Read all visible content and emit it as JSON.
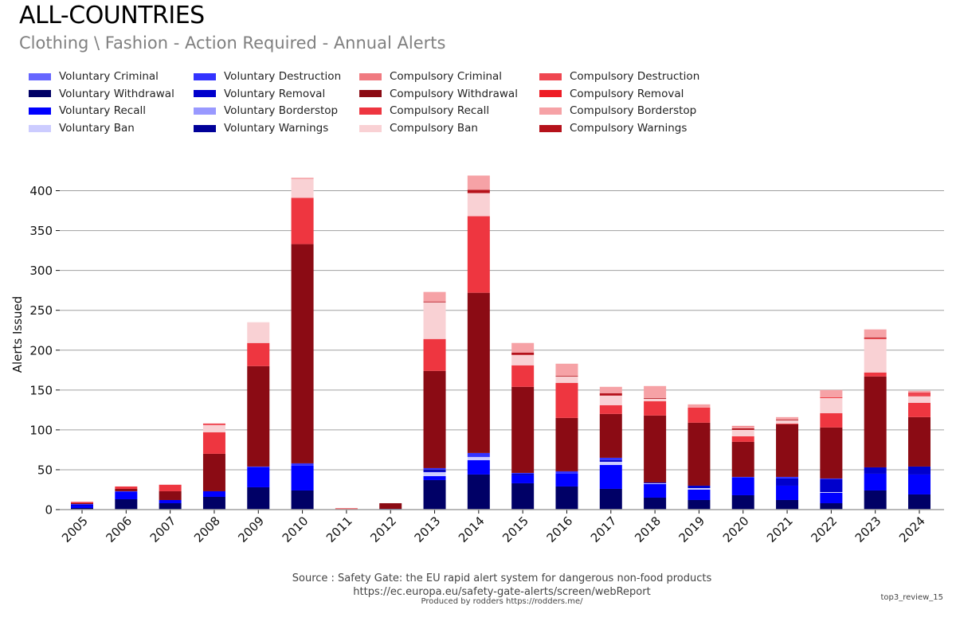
{
  "header": {
    "title": "ALL-COUNTRIES",
    "subtitle": "Clothing \\ Fashion - Action Required - Annual Alerts"
  },
  "footer": {
    "source": "Source : Safety Gate: the EU rapid alert system for dangerous non-food products",
    "url": "https://ec.europa.eu/safety-gate-alerts/screen/webReport",
    "produced_by": "Produced by rodders https://rodders.me/",
    "tag": "top3_review_15"
  },
  "chart_data": {
    "type": "bar",
    "stacked": true,
    "title": "ALL-COUNTRIES",
    "subtitle": "Clothing \\ Fashion - Action Required - Annual Alerts",
    "xlabel": "",
    "ylabel": "Alerts Issued",
    "ylim": [
      0,
      420
    ],
    "yticks": [
      0,
      50,
      100,
      150,
      200,
      250,
      300,
      350,
      400
    ],
    "grid": true,
    "legend_position": "top-left",
    "categories": [
      "2005",
      "2006",
      "2007",
      "2008",
      "2009",
      "2010",
      "2011",
      "2012",
      "2013",
      "2014",
      "2015",
      "2016",
      "2017",
      "2018",
      "2019",
      "2020",
      "2021",
      "2022",
      "2023",
      "2024"
    ],
    "legend_order": [
      "Voluntary Criminal",
      "Voluntary Destruction",
      "Compulsory Criminal",
      "Compulsory Destruction",
      "Voluntary Withdrawal",
      "Voluntary Removal",
      "Compulsory Withdrawal",
      "Compulsory Removal",
      "Voluntary Recall",
      "Voluntary Borderstop",
      "Compulsory Recall",
      "Compulsory Borderstop",
      "Voluntary Ban",
      "Voluntary Warnings",
      "Compulsory Ban",
      "Compulsory Warnings"
    ],
    "series": [
      {
        "name": "Voluntary Withdrawal",
        "color": "#000066",
        "values": [
          2,
          13,
          8,
          16,
          28,
          24,
          0,
          1,
          37,
          44,
          33,
          29,
          26,
          15,
          12,
          18,
          12,
          8,
          24,
          19
        ]
      },
      {
        "name": "Voluntary Recall",
        "color": "#0000ff",
        "values": [
          3,
          9,
          4,
          7,
          25,
          31,
          0,
          0,
          5,
          18,
          10,
          16,
          30,
          17,
          13,
          22,
          18,
          13,
          21,
          25
        ]
      },
      {
        "name": "Voluntary Ban",
        "color": "#ccccff",
        "values": [
          0,
          0,
          0,
          0,
          0,
          0,
          0,
          0,
          5,
          4,
          0,
          0,
          4,
          1,
          2,
          0,
          0,
          1,
          0,
          0
        ]
      },
      {
        "name": "Voluntary Removal",
        "color": "#0000cc",
        "values": [
          1,
          0,
          0,
          0,
          0,
          0,
          0,
          0,
          2,
          0,
          2,
          0,
          2,
          1,
          3,
          0,
          9,
          16,
          8,
          10
        ]
      },
      {
        "name": "Voluntary Warnings",
        "color": "#000099",
        "values": [
          0,
          0,
          0,
          0,
          0,
          0,
          0,
          0,
          1,
          0,
          0,
          0,
          0,
          0,
          0,
          0,
          0,
          0,
          0,
          0
        ]
      },
      {
        "name": "Voluntary Borderstop",
        "color": "#9999ff",
        "values": [
          0,
          0,
          0,
          0,
          0,
          0,
          0,
          0,
          0,
          0,
          0,
          0,
          0,
          0,
          0,
          0,
          0,
          0,
          0,
          0
        ]
      },
      {
        "name": "Voluntary Destruction",
        "color": "#3333ff",
        "values": [
          1,
          1,
          0,
          0,
          1,
          3,
          0,
          0,
          2,
          5,
          1,
          3,
          3,
          0,
          0,
          1,
          2,
          1,
          0,
          0
        ]
      },
      {
        "name": "Voluntary Criminal",
        "color": "#6666ff",
        "values": [
          0,
          0,
          0,
          0,
          0,
          0,
          0,
          0,
          0,
          0,
          0,
          0,
          0,
          0,
          0,
          0,
          0,
          0,
          0,
          0
        ]
      },
      {
        "name": "Compulsory Withdrawal",
        "color": "#8b0b14",
        "values": [
          1,
          3,
          11,
          47,
          126,
          275,
          0,
          7,
          122,
          201,
          108,
          67,
          55,
          84,
          79,
          44,
          66,
          64,
          114,
          62
        ]
      },
      {
        "name": "Compulsory Recall",
        "color": "#ee3640",
        "values": [
          1,
          3,
          8,
          27,
          29,
          58,
          1,
          0,
          40,
          96,
          27,
          44,
          11,
          18,
          19,
          7,
          1,
          18,
          5,
          18
        ]
      },
      {
        "name": "Compulsory Ban",
        "color": "#f9d1d4",
        "values": [
          0,
          0,
          1,
          9,
          26,
          24,
          0,
          0,
          46,
          29,
          13,
          8,
          12,
          3,
          0,
          8,
          4,
          19,
          42,
          8
        ]
      },
      {
        "name": "Compulsory Removal",
        "color": "#ee1c25",
        "values": [
          0,
          0,
          0,
          0,
          0,
          0,
          0,
          0,
          0,
          0,
          0,
          0,
          0,
          0,
          0,
          0,
          0,
          1,
          1,
          0
        ]
      },
      {
        "name": "Compulsory Destruction",
        "color": "#ef4650",
        "values": [
          0,
          0,
          0,
          2,
          0,
          0,
          0,
          0,
          0,
          0,
          0,
          0,
          0,
          0,
          0,
          0,
          0,
          0,
          0,
          5
        ]
      },
      {
        "name": "Compulsory Warnings",
        "color": "#b5121b",
        "values": [
          0,
          0,
          0,
          0,
          0,
          0,
          0,
          0,
          1,
          4,
          3,
          1,
          3,
          1,
          0,
          2,
          1,
          0,
          1,
          0
        ]
      },
      {
        "name": "Compulsory Borderstop",
        "color": "#f6a2a6",
        "values": [
          0,
          0,
          0,
          0,
          0,
          0,
          0,
          0,
          12,
          18,
          12,
          15,
          8,
          15,
          4,
          2,
          3,
          9,
          10,
          2
        ]
      },
      {
        "name": "Compulsory Criminal",
        "color": "#f07a80",
        "values": [
          1,
          0,
          0,
          0,
          0,
          1,
          1,
          0,
          0,
          0,
          0,
          0,
          0,
          0,
          0,
          1,
          0,
          0,
          0,
          0
        ]
      }
    ]
  }
}
